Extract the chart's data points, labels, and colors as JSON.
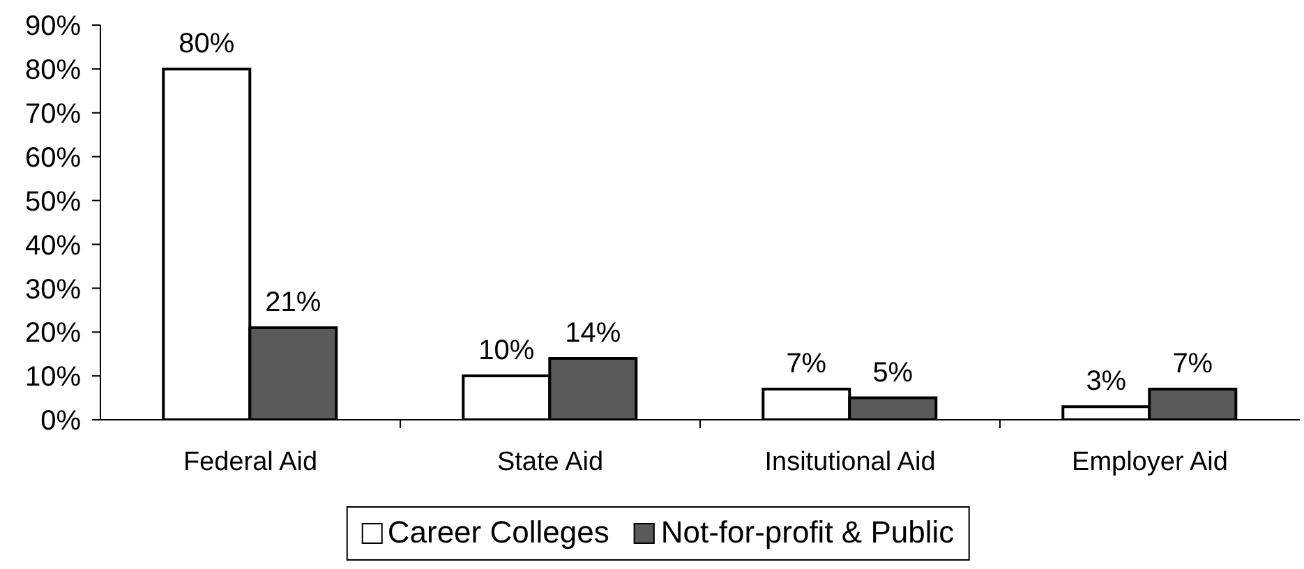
{
  "chart_data": {
    "type": "bar",
    "categories": [
      "Federal Aid",
      "State Aid",
      "Insitutional Aid",
      "Employer Aid"
    ],
    "series": [
      {
        "name": "Career Colleges",
        "color": "#ffffff",
        "values": [
          80,
          10,
          7,
          3
        ],
        "value_labels": [
          "80%",
          "10%",
          "7%",
          "3%"
        ]
      },
      {
        "name": "Not-for-profit & Public",
        "color": "#5a5a5a",
        "values": [
          21,
          14,
          5,
          7
        ],
        "value_labels": [
          "21%",
          "14%",
          "5%",
          "7%"
        ]
      }
    ],
    "ylim": [
      0,
      90
    ],
    "yticks": [
      {
        "value": 0,
        "label": "0%"
      },
      {
        "value": 10,
        "label": "10%"
      },
      {
        "value": 20,
        "label": "20%"
      },
      {
        "value": 30,
        "label": "30%"
      },
      {
        "value": 40,
        "label": "40%"
      },
      {
        "value": 50,
        "label": "50%"
      },
      {
        "value": 60,
        "label": "60%"
      },
      {
        "value": 70,
        "label": "70%"
      },
      {
        "value": 80,
        "label": "80%"
      },
      {
        "value": 90,
        "label": "90%"
      }
    ],
    "legend": "bottom"
  }
}
